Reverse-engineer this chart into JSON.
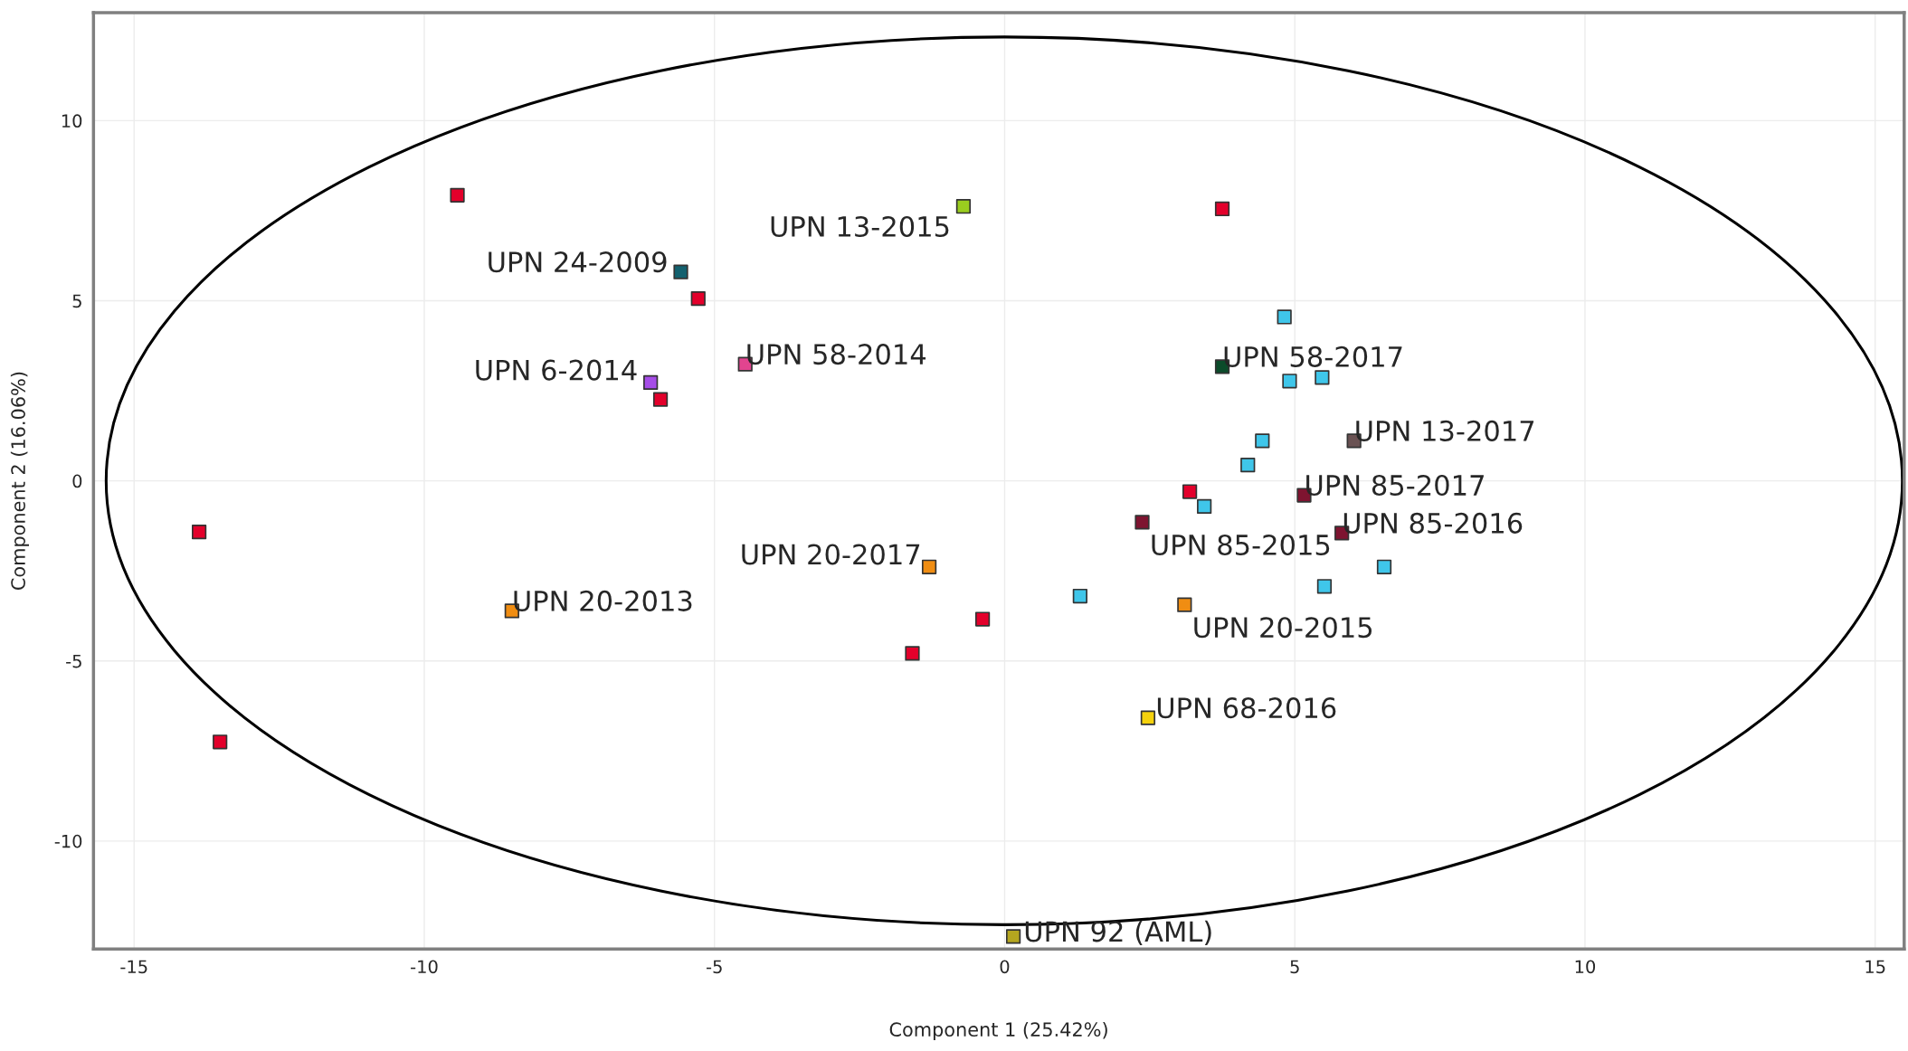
{
  "chart_data": {
    "type": "scatter",
    "xlabel": "Component 1 (25.42%)",
    "ylabel": "Component 2 (16.06%)",
    "xlim": [
      -15.7,
      15.5
    ],
    "ylim": [
      -13,
      13
    ],
    "xticks": [
      -15,
      -10,
      -5,
      0,
      5,
      10,
      15
    ],
    "yticks": [
      -10,
      -5,
      0,
      5,
      10
    ],
    "grid": true,
    "marker": "square",
    "legend": false,
    "series": [
      {
        "color": "#e3002b",
        "x": [
          -9.43,
          3.75,
          -5.28,
          -5.93,
          -13.88,
          -13.52,
          3.19,
          -0.38,
          -1.59
        ],
        "values": [
          7.93,
          7.55,
          5.06,
          2.26,
          -1.42,
          -7.25,
          -0.3,
          -3.84,
          -4.79
        ]
      },
      {
        "color": "#3fc6ea",
        "x": [
          4.82,
          4.91,
          5.47,
          4.44,
          4.19,
          3.44,
          6.54,
          5.51,
          1.3
        ],
        "values": [
          4.55,
          2.77,
          2.87,
          1.11,
          0.44,
          -0.71,
          -2.39,
          -2.93,
          -3.2
        ]
      },
      {
        "color": "#9acd1f",
        "x": [
          -0.71
        ],
        "values": [
          7.62
        ]
      },
      {
        "color": "#13616f",
        "x": [
          -5.58
        ],
        "values": [
          5.8
        ]
      },
      {
        "color": "#a64de8",
        "x": [
          -6.1
        ],
        "values": [
          2.73
        ]
      },
      {
        "color": "#e2448f",
        "x": [
          -4.47
        ],
        "values": [
          3.24
        ]
      },
      {
        "color": "#0b4b2a",
        "x": [
          3.75
        ],
        "values": [
          3.17
        ]
      },
      {
        "color": "#6a5253",
        "x": [
          6.02
        ],
        "values": [
          1.11
        ]
      },
      {
        "color": "#7e1430",
        "x": [
          5.16,
          5.81,
          2.37
        ],
        "values": [
          -0.4,
          -1.45,
          -1.15
        ]
      },
      {
        "color": "#f08d12",
        "x": [
          -1.3,
          -8.49,
          3.1
        ],
        "values": [
          -2.39,
          -3.61,
          -3.44
        ]
      },
      {
        "color": "#f5d20d",
        "x": [
          2.47
        ],
        "values": [
          -6.58
        ]
      },
      {
        "color": "#b5a61f",
        "x": [
          0.15
        ],
        "values": [
          -12.65
        ]
      }
    ],
    "annotations": [
      {
        "text": "UPN 13-2015",
        "x": -0.71,
        "y": 7.62
      },
      {
        "text": "UPN 24-2009",
        "x": -5.58,
        "y": 5.8
      },
      {
        "text": "UPN 6-2014",
        "x": -6.1,
        "y": 2.73
      },
      {
        "text": "UPN 58-2014",
        "x": -4.47,
        "y": 3.24
      },
      {
        "text": "UPN 58-2017",
        "x": 3.75,
        "y": 3.17
      },
      {
        "text": "UPN 13-2017",
        "x": 6.02,
        "y": 1.11
      },
      {
        "text": "UPN 85-2017",
        "x": 5.16,
        "y": -0.4
      },
      {
        "text": "UPN 85-2016",
        "x": 5.81,
        "y": -1.45
      },
      {
        "text": "UPN 85-2015",
        "x": 2.37,
        "y": -1.15
      },
      {
        "text": "UPN 20-2017",
        "x": -1.3,
        "y": -2.39
      },
      {
        "text": "UPN 20-2013",
        "x": -8.49,
        "y": -3.61
      },
      {
        "text": "UPN 20-2015",
        "x": 3.1,
        "y": -3.44
      },
      {
        "text": "UPN 68-2016",
        "x": 2.47,
        "y": -6.58
      },
      {
        "text": "UPN 92 (AML)",
        "x": 0.15,
        "y": -12.65
      }
    ]
  }
}
